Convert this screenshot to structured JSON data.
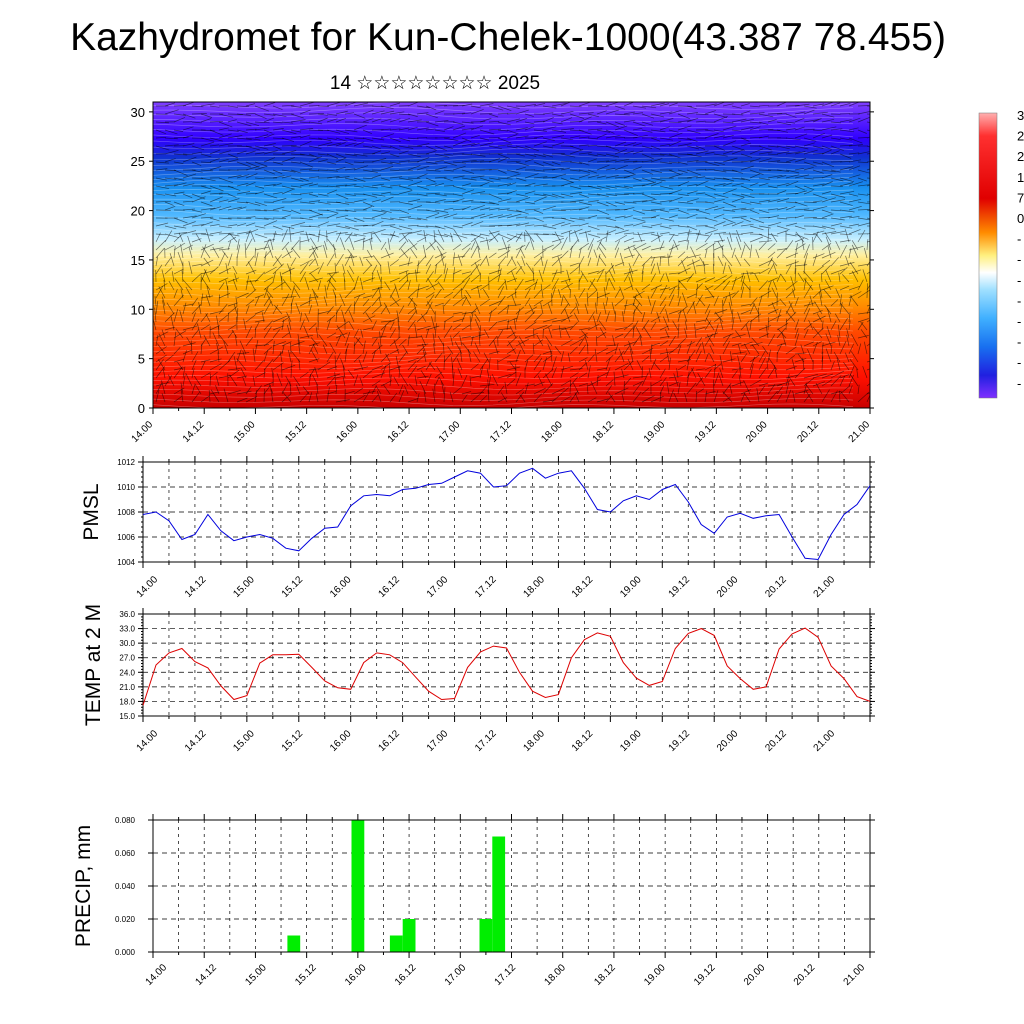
{
  "header": {
    "title": "Kazhydromet for Kun-Chelek-1000(43.387 78.455)",
    "subtitle": "14 ☆☆☆☆☆☆☆☆ 2025"
  },
  "colors": {
    "pmsl_line": "#0000dd",
    "temp_line": "#dd0000",
    "precip_bar": "#00ee00",
    "colorbar": [
      "#ffb0b0",
      "#ff3030",
      "#ff0000",
      "#e00000",
      "#ff5000",
      "#ff8c00",
      "#ffc000",
      "#fff080",
      "#ffffff",
      "#a0e0ff",
      "#40b0ff",
      "#1870f0",
      "#2020e0",
      "#3000ff",
      "#7f30ff"
    ]
  },
  "x_ticks": [
    "14.00",
    "14.12",
    "15.00",
    "15.12",
    "16.00",
    "16.12",
    "17.00",
    "17.12",
    "18.00",
    "18.12",
    "19.00",
    "19.12",
    "20.00",
    "20.12",
    "21.00"
  ],
  "colorbar_labels": [
    "3",
    "2",
    "2",
    "1",
    "7",
    "0",
    "-",
    "-",
    "-",
    "-",
    "-",
    "-",
    "-",
    "-"
  ],
  "chart_data": [
    {
      "type": "heatmap",
      "title": "",
      "xlabel": "",
      "ylabel": "",
      "ylim": [
        0,
        31
      ],
      "yticks": [
        0,
        5,
        10,
        15,
        20,
        25,
        30
      ],
      "x": [
        "14.00",
        "14.12",
        "15.00",
        "15.12",
        "16.00",
        "16.12",
        "17.00",
        "17.12",
        "18.00",
        "18.12",
        "19.00",
        "19.12",
        "20.00",
        "20.12",
        "21.00"
      ],
      "overlay": "wind-barbs",
      "colorbar": "right"
    },
    {
      "type": "line",
      "ylabel": "PMSL",
      "ylim": [
        1004,
        1012
      ],
      "yticks": [
        "1004",
        "1006",
        "1008",
        "1010",
        "1012"
      ],
      "x_hours_from_14_00": [
        0,
        3,
        6,
        9,
        12,
        15,
        18,
        21,
        24,
        27,
        30,
        33,
        36,
        39,
        42,
        45,
        48,
        51,
        54,
        57,
        60,
        63,
        66,
        69,
        72,
        75,
        78,
        81,
        84,
        87,
        90,
        93,
        96,
        99,
        102,
        105,
        108,
        111,
        114,
        117,
        120,
        123,
        126,
        129,
        132,
        135,
        138,
        141,
        144,
        147,
        150,
        153,
        156,
        159,
        162,
        165,
        168
      ],
      "series": [
        {
          "name": "",
          "values": [
            1007.8,
            1008.0,
            1007.3,
            1005.8,
            1006.2,
            1007.8,
            1006.5,
            1005.7,
            1006.0,
            1006.2,
            1005.9,
            1005.1,
            1004.9,
            1005.9,
            1006.7,
            1006.8,
            1008.5,
            1009.3,
            1009.4,
            1009.3,
            1009.8,
            1009.9,
            1010.2,
            1010.3,
            1010.8,
            1011.3,
            1011.1,
            1010.0,
            1010.1,
            1011.1,
            1011.5,
            1010.7,
            1011.1,
            1011.3,
            1009.9,
            1008.2,
            1008.0,
            1008.9,
            1009.3,
            1009.0,
            1009.8,
            1010.2,
            1008.8,
            1007.0,
            1006.3,
            1007.6,
            1007.9,
            1007.5,
            1007.7,
            1007.8,
            1006.0,
            1004.3,
            1004.2,
            1006.2,
            1007.8,
            1008.6,
            1010.1
          ]
        }
      ]
    },
    {
      "type": "line",
      "ylabel": "TEMP at 2 M",
      "ylim": [
        15.0,
        36.0
      ],
      "yticks": [
        "15.0",
        "18.0",
        "21.0",
        "24.0",
        "27.0",
        "30.0",
        "33.0",
        "36.0"
      ],
      "x_hours_from_14_00": [
        0,
        3,
        6,
        9,
        12,
        15,
        18,
        21,
        24,
        27,
        30,
        33,
        36,
        39,
        42,
        45,
        48,
        51,
        54,
        57,
        60,
        63,
        66,
        69,
        72,
        75,
        78,
        81,
        84,
        87,
        90,
        93,
        96,
        99,
        102,
        105,
        108,
        111,
        114,
        117,
        120,
        123,
        126,
        129,
        132,
        135,
        138,
        141,
        144,
        147,
        150,
        153,
        156,
        159,
        162,
        165,
        168
      ],
      "series": [
        {
          "name": "",
          "values": [
            17.2,
            25.5,
            28.0,
            28.9,
            26.2,
            24.9,
            21.2,
            18.4,
            19.2,
            25.9,
            27.6,
            27.6,
            27.7,
            25.0,
            22.2,
            20.8,
            20.5,
            26.0,
            28.0,
            27.6,
            26.0,
            23.0,
            20.1,
            18.4,
            18.6,
            25.0,
            28.2,
            29.4,
            29.0,
            24.0,
            20.1,
            18.8,
            19.4,
            27.0,
            30.7,
            32.1,
            31.4,
            26.0,
            22.8,
            21.3,
            22.1,
            28.9,
            32.0,
            33.0,
            31.6,
            25.3,
            22.7,
            20.5,
            21.0,
            28.8,
            31.9,
            33.1,
            31.2,
            25.3,
            22.7,
            19.0,
            18.0
          ]
        }
      ]
    },
    {
      "type": "bar",
      "ylabel": "PRECIP, mm",
      "ylim": [
        0.0,
        0.08
      ],
      "yticks": [
        "0.000",
        "0.020",
        "0.040",
        "0.060",
        "0.080"
      ],
      "x_hours_from_14_00": [
        33,
        48,
        57,
        60,
        78,
        81
      ],
      "values": [
        0.01,
        0.08,
        0.01,
        0.02,
        0.02,
        0.07
      ]
    }
  ]
}
